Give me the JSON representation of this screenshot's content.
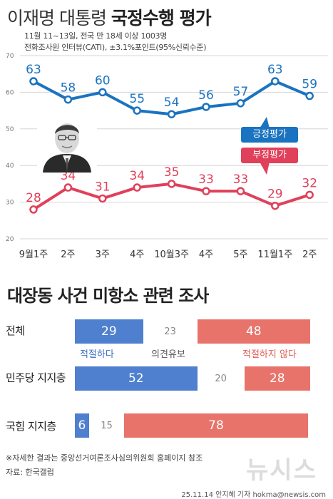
{
  "title": {
    "normal": "이재명 대통령",
    "bold": "국정수행 평가"
  },
  "subtitle": [
    "11월 11~13일, 전국 만 18세 이상 1003명",
    "전화조사원 인터뷰(CATI), ±3.1%포인트(95%신뢰수준)"
  ],
  "chart_data": [
    {
      "type": "line",
      "categories": [
        "9월1주",
        "2주",
        "3주",
        "4주",
        "10월3주",
        "4주",
        "5주",
        "11월1주",
        "2주"
      ],
      "series": [
        {
          "name": "긍정평가",
          "values": [
            63,
            58,
            60,
            55,
            54,
            56,
            57,
            63,
            59
          ],
          "color": "#1a73c0"
        },
        {
          "name": "부정평가",
          "values": [
            28,
            34,
            31,
            34,
            35,
            33,
            33,
            29,
            32
          ],
          "color": "#e0405a"
        }
      ],
      "yticks": [
        20,
        30,
        40,
        50,
        60,
        70
      ],
      "ylim": [
        20,
        70
      ],
      "grid": true,
      "legend": "right"
    },
    {
      "type": "bar",
      "stacked": true,
      "title": "대장동 사건 미항소 관련 조사",
      "categories": [
        "전체",
        "민주당 지지층",
        "국힘 지지층"
      ],
      "series": [
        {
          "name": "적절하다",
          "values": [
            29,
            52,
            6
          ],
          "color": "#4f7fcf"
        },
        {
          "name": "의견유보",
          "values": [
            23,
            20,
            15
          ],
          "color": "#ffffff"
        },
        {
          "name": "적절하지 않다",
          "values": [
            48,
            28,
            78
          ],
          "color": "#e8736a"
        }
      ]
    }
  ],
  "photo": {
    "icon": "person-photo-icon"
  },
  "footnote": "※자세한 결과는 중앙선거여론조사심의위원회 홈페이지 참조",
  "source": "자료: 한국갤럽",
  "watermark": "뉴시스",
  "credit": "25.11.14 안지혜 기자 hokma@newsis.com"
}
